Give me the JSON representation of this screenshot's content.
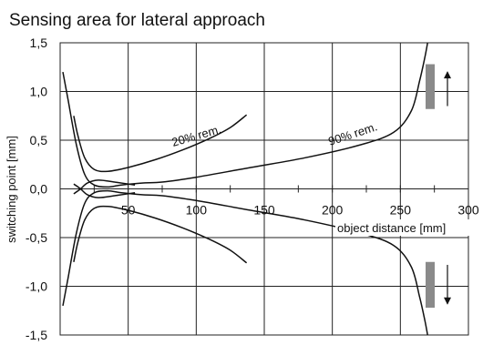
{
  "chart_data": {
    "type": "line",
    "title": "Sensing area for lateral approach",
    "xlabel": "object distance [mm]",
    "ylabel": "switching point [mm]",
    "xlim": [
      0,
      300
    ],
    "ylim": [
      -1.5,
      1.5
    ],
    "x_ticks": [
      "50",
      "100",
      "150",
      "200",
      "250",
      "300"
    ],
    "y_ticks": [
      "1,5",
      "1,0",
      "0,5",
      "0,0",
      "-0,5",
      "-1,0",
      "-1,5"
    ],
    "grid": true,
    "annotations": [
      "20% rem.",
      "90% rem."
    ],
    "series": [
      {
        "name": "20% rem.",
        "upper": {
          "x": [
            10,
            13,
            18,
            25,
            35,
            50,
            70,
            90,
            110,
            125,
            137
          ],
          "y": [
            0.75,
            0.55,
            0.32,
            0.2,
            0.18,
            0.22,
            0.3,
            0.4,
            0.52,
            0.63,
            0.76
          ]
        },
        "lower": {
          "x": [
            10,
            13,
            18,
            25,
            35,
            50,
            70,
            90,
            110,
            125,
            137
          ],
          "y": [
            -0.75,
            -0.55,
            -0.32,
            -0.2,
            -0.18,
            -0.22,
            -0.3,
            -0.4,
            -0.52,
            -0.63,
            -0.76
          ]
        }
      },
      {
        "name": "90% rem.",
        "upper": {
          "x": [
            2,
            6,
            12,
            18,
            25,
            35,
            45,
            60,
            75,
            100,
            140,
            180,
            220,
            245,
            258,
            264,
            268,
            270
          ],
          "y": [
            1.2,
            0.9,
            0.45,
            0.15,
            0.04,
            0.02,
            0.04,
            0.06,
            0.07,
            0.12,
            0.22,
            0.32,
            0.45,
            0.58,
            0.8,
            1.1,
            1.35,
            1.5
          ]
        },
        "lower": {
          "x": [
            2,
            6,
            12,
            18,
            25,
            35,
            45,
            60,
            75,
            100,
            140,
            180,
            220,
            245,
            258,
            264,
            268,
            270
          ],
          "y": [
            -1.2,
            -0.9,
            -0.45,
            -0.15,
            -0.04,
            -0.02,
            -0.04,
            -0.06,
            -0.07,
            -0.12,
            -0.22,
            -0.32,
            -0.45,
            -0.58,
            -0.8,
            -1.1,
            -1.35,
            -1.5
          ]
        }
      },
      {
        "name": "",
        "upper": {
          "x": [
            10,
            15,
            20,
            28,
            40,
            55
          ],
          "y": [
            -0.05,
            0.0,
            0.06,
            0.09,
            0.07,
            0.04
          ]
        },
        "lower": {
          "x": [
            10,
            15,
            20,
            28,
            40,
            55
          ],
          "y": [
            0.05,
            0.0,
            -0.06,
            -0.09,
            -0.07,
            -0.04
          ]
        }
      }
    ],
    "direction_markers": [
      "up",
      "down"
    ]
  }
}
